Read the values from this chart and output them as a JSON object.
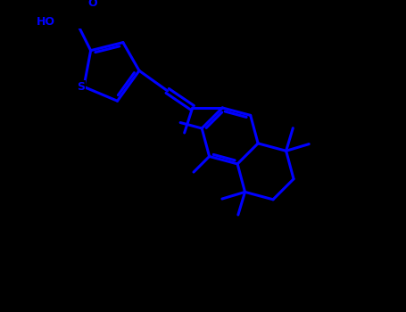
{
  "bg_color": "#000000",
  "line_color": "#0000FF",
  "lw": 2.2,
  "figsize": [
    4.55,
    3.5
  ],
  "dpi": 100,
  "xlim": [
    0.0,
    9.0
  ],
  "ylim": [
    0.0,
    7.0
  ]
}
